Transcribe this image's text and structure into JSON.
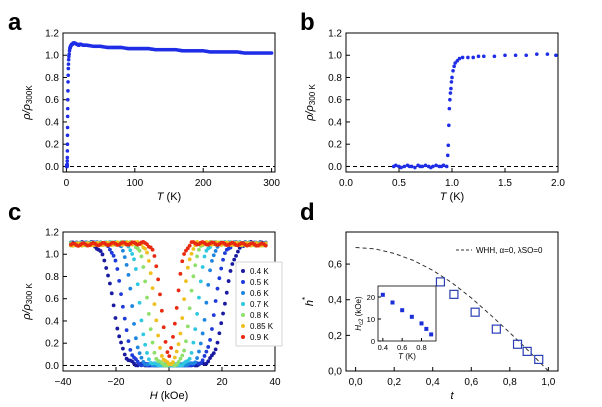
{
  "chart_data": [
    {
      "panel": "a",
      "type": "scatter",
      "xlabel": "T (K)",
      "ylabel": "ρ/ρ300K",
      "xlim": [
        -5,
        305
      ],
      "ylim": [
        -0.05,
        1.2
      ],
      "xticks": [
        "0",
        "100",
        "200",
        "300"
      ],
      "yticks": [
        "0.0",
        "0.2",
        "0.4",
        "0.6",
        "0.8",
        "1.0",
        "1.2"
      ],
      "reference_line": {
        "y": 0,
        "style": "dashed"
      },
      "series": [
        {
          "name": "ρ/ρ300K",
          "color": "#1f2ee6",
          "points": [
            [
              0.3,
              0.0
            ],
            [
              0.4,
              0.0
            ],
            [
              0.5,
              0.01
            ],
            [
              0.6,
              0.005
            ],
            [
              0.7,
              0.0
            ],
            [
              0.8,
              0.0
            ],
            [
              0.9,
              0.01
            ],
            [
              1.0,
              0.0
            ],
            [
              1.1,
              0.02
            ],
            [
              1.2,
              0.05
            ],
            [
              1.3,
              0.08
            ],
            [
              1.4,
              0.14
            ],
            [
              1.5,
              0.2
            ],
            [
              1.6,
              0.28
            ],
            [
              1.7,
              0.35
            ],
            [
              1.8,
              0.45
            ],
            [
              1.9,
              0.52
            ],
            [
              2.0,
              0.6
            ],
            [
              2.2,
              0.68
            ],
            [
              2.4,
              0.76
            ],
            [
              2.6,
              0.82
            ],
            [
              2.8,
              0.88
            ],
            [
              3.0,
              0.92
            ],
            [
              3.3,
              0.96
            ],
            [
              3.6,
              0.99
            ],
            [
              4.0,
              1.01
            ],
            [
              4.5,
              1.04
            ],
            [
              5,
              1.06
            ],
            [
              6,
              1.08
            ],
            [
              7,
              1.09
            ],
            [
              8,
              1.1
            ],
            [
              9,
              1.1
            ],
            [
              10,
              1.11
            ],
            [
              12,
              1.11
            ],
            [
              15,
              1.1
            ],
            [
              18,
              1.09
            ],
            [
              20,
              1.1
            ],
            [
              25,
              1.09
            ],
            [
              30,
              1.09
            ],
            [
              40,
              1.08
            ],
            [
              50,
              1.08
            ],
            [
              60,
              1.07
            ],
            [
              70,
              1.07
            ],
            [
              80,
              1.07
            ],
            [
              90,
              1.06
            ],
            [
              100,
              1.06
            ],
            [
              110,
              1.06
            ],
            [
              120,
              1.06
            ],
            [
              130,
              1.05
            ],
            [
              140,
              1.05
            ],
            [
              150,
              1.05
            ],
            [
              160,
              1.05
            ],
            [
              170,
              1.04
            ],
            [
              180,
              1.04
            ],
            [
              190,
              1.04
            ],
            [
              200,
              1.04
            ],
            [
              210,
              1.03
            ],
            [
              220,
              1.03
            ],
            [
              230,
              1.03
            ],
            [
              240,
              1.03
            ],
            [
              250,
              1.03
            ],
            [
              260,
              1.02
            ],
            [
              270,
              1.02
            ],
            [
              280,
              1.02
            ],
            [
              290,
              1.02
            ],
            [
              300,
              1.02
            ]
          ]
        }
      ]
    },
    {
      "panel": "b",
      "type": "scatter",
      "xlabel": "T (K)",
      "ylabel": "ρ/ρ300 K",
      "xlim": [
        0,
        2.0
      ],
      "ylim": [
        -0.05,
        1.2
      ],
      "xticks": [
        "0.0",
        "0.5",
        "1.0",
        "1.5",
        "2.0"
      ],
      "yticks": [
        "0.0",
        "0.2",
        "0.4",
        "0.6",
        "0.8",
        "1.0",
        "1.2"
      ],
      "reference_line": {
        "y": 0,
        "style": "dashed"
      },
      "series": [
        {
          "name": "ρ/ρ300 K",
          "color": "#1f2ee6",
          "points": [
            [
              0.45,
              0.0
            ],
            [
              0.47,
              0.01
            ],
            [
              0.5,
              0.0
            ],
            [
              0.52,
              -0.01
            ],
            [
              0.55,
              0.0
            ],
            [
              0.58,
              0.01
            ],
            [
              0.6,
              0.0
            ],
            [
              0.62,
              0.0
            ],
            [
              0.65,
              -0.01
            ],
            [
              0.68,
              0.01
            ],
            [
              0.7,
              0.0
            ],
            [
              0.72,
              0.0
            ],
            [
              0.75,
              0.01
            ],
            [
              0.78,
              0.0
            ],
            [
              0.8,
              -0.01
            ],
            [
              0.82,
              0.0
            ],
            [
              0.85,
              0.01
            ],
            [
              0.88,
              0.0
            ],
            [
              0.9,
              0.0
            ],
            [
              0.92,
              0.01
            ],
            [
              0.95,
              0.0
            ],
            [
              0.96,
              0.1
            ],
            [
              0.965,
              0.19
            ],
            [
              0.97,
              0.37
            ],
            [
              0.975,
              0.52
            ],
            [
              0.98,
              0.6
            ],
            [
              0.985,
              0.66
            ],
            [
              0.99,
              0.7
            ],
            [
              0.995,
              0.76
            ],
            [
              1.0,
              0.8
            ],
            [
              1.01,
              0.86
            ],
            [
              1.02,
              0.9
            ],
            [
              1.03,
              0.93
            ],
            [
              1.05,
              0.95
            ],
            [
              1.07,
              0.97
            ],
            [
              1.1,
              0.98
            ],
            [
              1.15,
              0.98
            ],
            [
              1.2,
              0.98
            ],
            [
              1.25,
              0.99
            ],
            [
              1.3,
              0.99
            ],
            [
              1.4,
              0.99
            ],
            [
              1.5,
              1.0
            ],
            [
              1.6,
              1.0
            ],
            [
              1.7,
              1.0
            ],
            [
              1.8,
              1.01
            ],
            [
              1.9,
              1.01
            ],
            [
              1.98,
              1.0
            ]
          ]
        }
      ]
    },
    {
      "panel": "c",
      "type": "scatter",
      "xlabel": "H (kOe)",
      "ylabel": "ρ/ρ300 K",
      "xlim": [
        -40,
        40
      ],
      "ylim": [
        -0.05,
        1.2
      ],
      "xticks": [
        "−40",
        "−20",
        "0",
        "20",
        "40"
      ],
      "yticks": [
        "0.0",
        "0.2",
        "0.4",
        "0.6",
        "0.8",
        "1.0",
        "1.2"
      ],
      "reference_line": {
        "y": 0,
        "style": "dashed"
      },
      "legend_position": "right",
      "series": [
        {
          "name": "0.4 K",
          "color": "#1a1aa0",
          "hc": 21.0
        },
        {
          "name": "0.5 K",
          "color": "#1f3bd8",
          "hc": 17.5
        },
        {
          "name": "0.6 K",
          "color": "#1f86e0",
          "hc": 14.0
        },
        {
          "name": "0.7 K",
          "color": "#30c8e0",
          "hc": 11.0
        },
        {
          "name": "0.8 K",
          "color": "#8fe06a",
          "hc": 8.0
        },
        {
          "name": "0.85 K",
          "color": "#f0c020",
          "hc": 5.5
        },
        {
          "name": "0.9 K",
          "color": "#e82a10",
          "hc": 3.0
        }
      ]
    },
    {
      "panel": "d",
      "type": "scatter",
      "xlabel": "t",
      "ylabel": "h*",
      "xlim": [
        -0.05,
        1.05
      ],
      "ylim": [
        0,
        0.78
      ],
      "xticks": [
        "0,0",
        "0,2",
        "0,4",
        "0,6",
        "0,8",
        "1,0"
      ],
      "yticks": [
        "0,0",
        "0,2",
        "0,4",
        "0,6"
      ],
      "legend": "WHH, α=0, λSO=0",
      "series": [
        {
          "name": "WHH, α=0, λSO=0",
          "style": "dashed",
          "color": "#333333",
          "x": [
            0,
            0.1,
            0.2,
            0.3,
            0.4,
            0.5,
            0.6,
            0.7,
            0.8,
            0.9,
            1.0
          ],
          "y": [
            0.693,
            0.685,
            0.66,
            0.62,
            0.565,
            0.495,
            0.41,
            0.315,
            0.215,
            0.11,
            0.0
          ]
        },
        {
          "name": "data",
          "style": "open-square",
          "color": "#2a3fb5",
          "x": [
            0.44,
            0.51,
            0.62,
            0.73,
            0.84,
            0.89,
            0.95
          ],
          "y": [
            0.5,
            0.43,
            0.33,
            0.235,
            0.15,
            0.11,
            0.065
          ]
        }
      ],
      "inset": {
        "xlabel": "T (K)",
        "ylabel": "Hc2 (kOe)",
        "xlim": [
          0.35,
          0.95
        ],
        "ylim": [
          0,
          25
        ],
        "xticks": [
          "0.4",
          "0.6",
          "0.8"
        ],
        "yticks": [
          "0",
          "10",
          "20"
        ],
        "x": [
          0.4,
          0.5,
          0.6,
          0.7,
          0.8,
          0.85,
          0.9
        ],
        "y": [
          21,
          17.5,
          14,
          11,
          8,
          5.5,
          3
        ],
        "color": "#1a2fd8"
      }
    }
  ],
  "labels": {
    "a": "a",
    "b": "b",
    "c": "c",
    "d": "d"
  }
}
